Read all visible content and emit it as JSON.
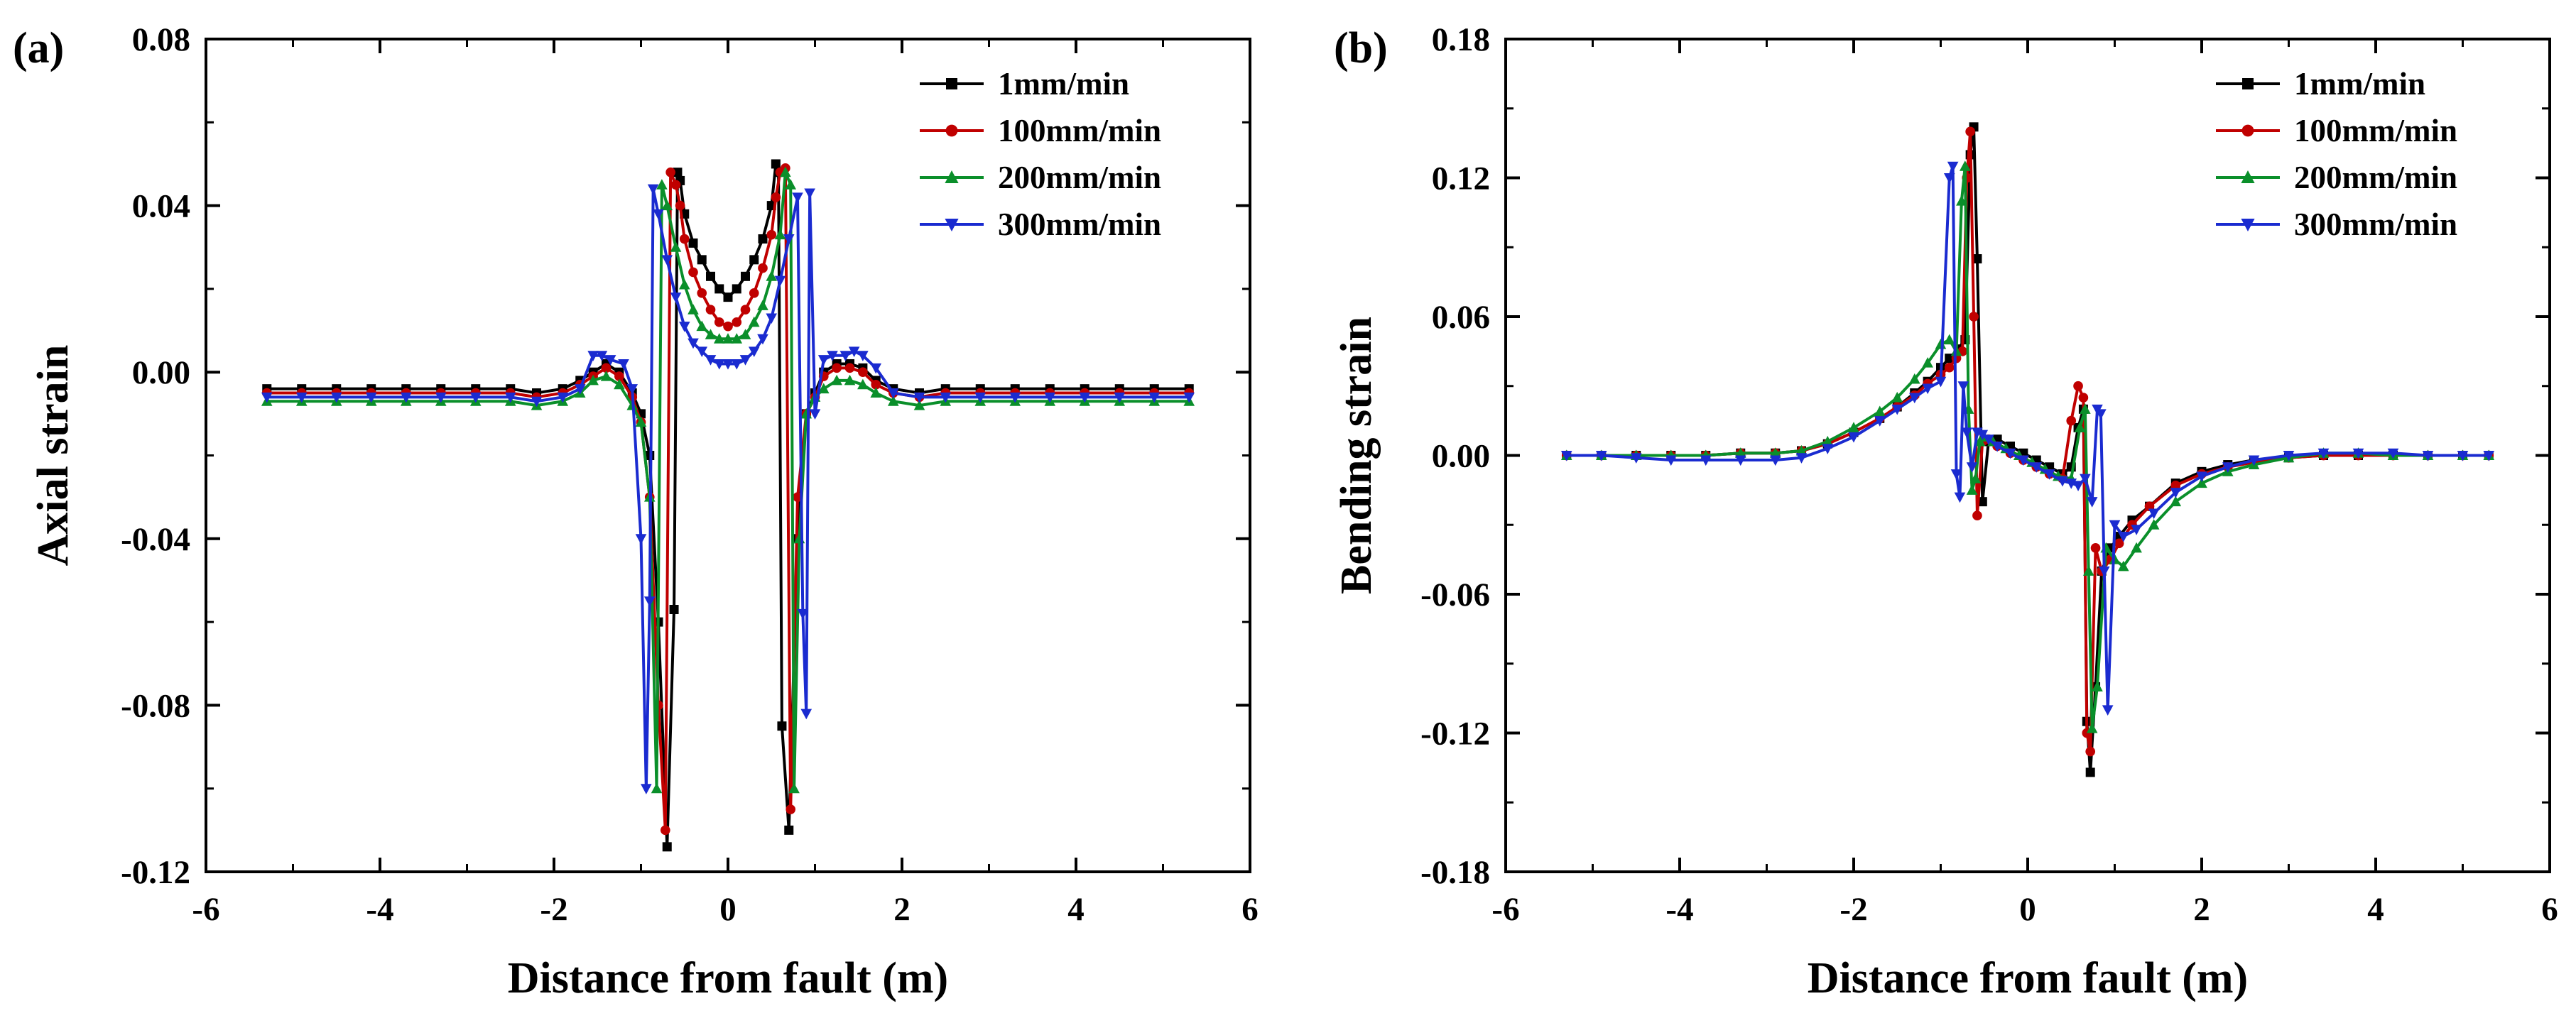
{
  "chart_data": [
    {
      "type": "line",
      "panel_label": "(a)",
      "xlabel": "Distance from fault (m)",
      "ylabel": "Axial strain",
      "xlim": [
        -6,
        6
      ],
      "ylim": [
        -0.12,
        0.08
      ],
      "xticks": [
        -6,
        -4,
        -2,
        0,
        2,
        4,
        6
      ],
      "xtick_labels": [
        "-6",
        "-4",
        "-2",
        "0",
        "2",
        "4",
        "6"
      ],
      "yticks": [
        -0.12,
        -0.08,
        -0.04,
        0.0,
        0.04,
        0.08
      ],
      "ytick_labels": [
        "-0.12",
        "-0.08",
        "-0.04",
        "0.00",
        "0.04",
        "0.08"
      ],
      "legend": "top-right",
      "series": [
        {
          "name": "1mm/min",
          "color": "#000000",
          "marker": "square",
          "x": [
            -5.3,
            -4.9,
            -4.5,
            -4.1,
            -3.7,
            -3.3,
            -2.9,
            -2.5,
            -2.2,
            -1.9,
            -1.7,
            -1.55,
            -1.4,
            -1.25,
            -1.1,
            -1.0,
            -0.9,
            -0.8,
            -0.7,
            -0.62,
            -0.58,
            -0.55,
            -0.5,
            -0.4,
            -0.3,
            -0.2,
            -0.1,
            0.0,
            0.1,
            0.2,
            0.3,
            0.4,
            0.5,
            0.55,
            0.58,
            0.62,
            0.7,
            0.8,
            0.9,
            1.0,
            1.1,
            1.25,
            1.4,
            1.55,
            1.7,
            1.9,
            2.2,
            2.5,
            2.9,
            3.3,
            3.7,
            4.1,
            4.5,
            4.9,
            5.3
          ],
          "y": [
            -0.004,
            -0.004,
            -0.004,
            -0.004,
            -0.004,
            -0.004,
            -0.004,
            -0.004,
            -0.005,
            -0.004,
            -0.002,
            0.0,
            0.002,
            0.0,
            -0.005,
            -0.01,
            -0.02,
            -0.06,
            -0.114,
            -0.057,
            0.048,
            0.046,
            0.038,
            0.031,
            0.027,
            0.023,
            0.02,
            0.018,
            0.02,
            0.023,
            0.027,
            0.032,
            0.04,
            0.05,
            0.048,
            -0.085,
            -0.11,
            -0.04,
            -0.01,
            -0.005,
            0.0,
            0.002,
            0.002,
            0.001,
            -0.002,
            -0.004,
            -0.005,
            -0.004,
            -0.004,
            -0.004,
            -0.004,
            -0.004,
            -0.004,
            -0.004,
            -0.004
          ]
        },
        {
          "name": "100mm/min",
          "color": "#c00000",
          "marker": "circle",
          "x": [
            -5.3,
            -4.9,
            -4.5,
            -4.1,
            -3.7,
            -3.3,
            -2.9,
            -2.5,
            -2.2,
            -1.9,
            -1.7,
            -1.55,
            -1.4,
            -1.25,
            -1.1,
            -1.0,
            -0.9,
            -0.8,
            -0.72,
            -0.66,
            -0.6,
            -0.55,
            -0.5,
            -0.4,
            -0.3,
            -0.2,
            -0.1,
            0.0,
            0.1,
            0.2,
            0.3,
            0.4,
            0.5,
            0.55,
            0.6,
            0.66,
            0.72,
            0.8,
            0.9,
            1.0,
            1.1,
            1.25,
            1.4,
            1.55,
            1.7,
            1.9,
            2.2,
            2.5,
            2.9,
            3.3,
            3.7,
            4.1,
            4.5,
            4.9,
            5.3
          ],
          "y": [
            -0.005,
            -0.005,
            -0.005,
            -0.005,
            -0.005,
            -0.005,
            -0.005,
            -0.005,
            -0.006,
            -0.005,
            -0.003,
            -0.001,
            0.001,
            -0.001,
            -0.006,
            -0.012,
            -0.03,
            -0.08,
            -0.11,
            0.048,
            0.045,
            0.04,
            0.032,
            0.024,
            0.019,
            0.015,
            0.012,
            0.011,
            0.012,
            0.015,
            0.019,
            0.025,
            0.033,
            0.042,
            0.048,
            0.049,
            -0.105,
            -0.03,
            -0.01,
            -0.006,
            -0.001,
            0.001,
            0.001,
            0.0,
            -0.003,
            -0.005,
            -0.006,
            -0.005,
            -0.005,
            -0.005,
            -0.005,
            -0.005,
            -0.005,
            -0.005,
            -0.005
          ]
        },
        {
          "name": "200mm/min",
          "color": "#0a8f2a",
          "marker": "triangle-up",
          "x": [
            -5.3,
            -4.9,
            -4.5,
            -4.1,
            -3.7,
            -3.3,
            -2.9,
            -2.5,
            -2.2,
            -1.9,
            -1.7,
            -1.55,
            -1.4,
            -1.25,
            -1.1,
            -1.0,
            -0.9,
            -0.82,
            -0.76,
            -0.7,
            -0.6,
            -0.5,
            -0.4,
            -0.3,
            -0.2,
            -0.1,
            0.0,
            0.1,
            0.2,
            0.3,
            0.4,
            0.5,
            0.6,
            0.66,
            0.72,
            0.76,
            0.82,
            0.9,
            1.0,
            1.1,
            1.25,
            1.4,
            1.55,
            1.7,
            1.9,
            2.2,
            2.5,
            2.9,
            3.3,
            3.7,
            4.1,
            4.5,
            4.9,
            5.3
          ],
          "y": [
            -0.007,
            -0.007,
            -0.007,
            -0.007,
            -0.007,
            -0.007,
            -0.007,
            -0.007,
            -0.008,
            -0.007,
            -0.005,
            -0.002,
            -0.001,
            -0.003,
            -0.008,
            -0.012,
            -0.03,
            -0.1,
            0.045,
            0.04,
            0.03,
            0.021,
            0.015,
            0.011,
            0.009,
            0.008,
            0.008,
            0.008,
            0.009,
            0.012,
            0.016,
            0.023,
            0.033,
            0.048,
            0.045,
            -0.1,
            -0.04,
            -0.01,
            -0.006,
            -0.004,
            -0.002,
            -0.002,
            -0.003,
            -0.005,
            -0.007,
            -0.008,
            -0.007,
            -0.007,
            -0.007,
            -0.007,
            -0.007,
            -0.007,
            -0.007,
            -0.007
          ]
        },
        {
          "name": "300mm/min",
          "color": "#1a2bd0",
          "marker": "triangle-down",
          "x": [
            -5.3,
            -4.9,
            -4.5,
            -4.1,
            -3.7,
            -3.3,
            -2.9,
            -2.5,
            -2.2,
            -1.9,
            -1.7,
            -1.55,
            -1.45,
            -1.35,
            -1.2,
            -1.1,
            -1.0,
            -0.94,
            -0.9,
            -0.86,
            -0.8,
            -0.7,
            -0.6,
            -0.5,
            -0.4,
            -0.3,
            -0.2,
            -0.1,
            0.0,
            0.1,
            0.2,
            0.3,
            0.4,
            0.5,
            0.6,
            0.7,
            0.8,
            0.86,
            0.9,
            0.94,
            1.0,
            1.1,
            1.2,
            1.35,
            1.45,
            1.55,
            1.7,
            1.9,
            2.2,
            2.5,
            2.9,
            3.3,
            3.7,
            4.1,
            4.5,
            4.9,
            5.3
          ],
          "y": [
            -0.006,
            -0.006,
            -0.006,
            -0.006,
            -0.006,
            -0.006,
            -0.006,
            -0.006,
            -0.007,
            -0.006,
            -0.004,
            0.004,
            0.004,
            0.003,
            0.002,
            -0.004,
            -0.04,
            -0.1,
            -0.055,
            0.044,
            0.038,
            0.027,
            0.018,
            0.011,
            0.007,
            0.005,
            0.003,
            0.002,
            0.002,
            0.002,
            0.003,
            0.005,
            0.008,
            0.013,
            0.022,
            0.032,
            0.042,
            -0.058,
            -0.082,
            0.043,
            -0.01,
            0.003,
            0.004,
            0.004,
            0.005,
            0.004,
            0.001,
            -0.005,
            -0.006,
            -0.006,
            -0.006,
            -0.006,
            -0.006,
            -0.006,
            -0.006,
            -0.006,
            -0.006
          ]
        }
      ]
    },
    {
      "type": "line",
      "panel_label": "(b)",
      "xlabel": "Distance from fault (m)",
      "ylabel": "Bending strain",
      "xlim": [
        -6,
        6
      ],
      "ylim": [
        -0.18,
        0.18
      ],
      "xticks": [
        -6,
        -4,
        -2,
        0,
        2,
        4,
        6
      ],
      "xtick_labels": [
        "-6",
        "-4",
        "-2",
        "0",
        "2",
        "4",
        "6"
      ],
      "yticks": [
        -0.18,
        -0.12,
        -0.06,
        0.0,
        0.06,
        0.12,
        0.18
      ],
      "ytick_labels": [
        "-0.18",
        "-0.12",
        "-0.06",
        "0.00",
        "0.06",
        "0.12",
        "0.18"
      ],
      "legend": "top-right",
      "series": [
        {
          "name": "1mm/min",
          "color": "#000000",
          "marker": "square",
          "x": [
            -5.3,
            -4.9,
            -4.5,
            -4.1,
            -3.7,
            -3.3,
            -2.9,
            -2.6,
            -2.3,
            -2.0,
            -1.7,
            -1.5,
            -1.3,
            -1.15,
            -1.0,
            -0.9,
            -0.8,
            -0.72,
            -0.66,
            -0.62,
            -0.58,
            -0.52,
            -0.45,
            -0.35,
            -0.2,
            -0.05,
            0.1,
            0.25,
            0.4,
            0.5,
            0.58,
            0.64,
            0.68,
            0.72,
            0.78,
            0.85,
            0.95,
            1.05,
            1.2,
            1.4,
            1.7,
            2.0,
            2.3,
            2.6,
            3.0,
            3.4,
            3.8,
            4.2,
            4.6,
            5.0,
            5.3
          ],
          "y": [
            0.0,
            0.0,
            0.0,
            0.0,
            0.0,
            0.001,
            0.001,
            0.002,
            0.005,
            0.01,
            0.016,
            0.021,
            0.027,
            0.032,
            0.038,
            0.042,
            0.046,
            0.05,
            0.13,
            0.142,
            0.085,
            -0.02,
            0.006,
            0.007,
            0.004,
            0.001,
            -0.002,
            -0.005,
            -0.008,
            -0.005,
            0.012,
            0.02,
            -0.115,
            -0.137,
            -0.1,
            -0.05,
            -0.04,
            -0.035,
            -0.028,
            -0.022,
            -0.012,
            -0.007,
            -0.004,
            -0.002,
            -0.001,
            0.0,
            0.0,
            0.0,
            0.0,
            0.0,
            0.0
          ]
        },
        {
          "name": "100mm/min",
          "color": "#c00000",
          "marker": "circle",
          "x": [
            -5.3,
            -4.9,
            -4.5,
            -4.1,
            -3.7,
            -3.3,
            -2.9,
            -2.6,
            -2.3,
            -2.0,
            -1.7,
            -1.5,
            -1.3,
            -1.15,
            -1.0,
            -0.9,
            -0.82,
            -0.75,
            -0.7,
            -0.66,
            -0.62,
            -0.58,
            -0.52,
            -0.45,
            -0.35,
            -0.2,
            -0.05,
            0.1,
            0.25,
            0.4,
            0.5,
            0.58,
            0.64,
            0.68,
            0.72,
            0.78,
            0.85,
            0.95,
            1.05,
            1.2,
            1.4,
            1.7,
            2.0,
            2.3,
            2.6,
            3.0,
            3.4,
            3.8,
            4.2,
            4.6,
            5.0,
            5.3
          ],
          "y": [
            0.0,
            0.0,
            0.0,
            0.0,
            0.0,
            0.001,
            0.001,
            0.002,
            0.005,
            0.01,
            0.016,
            0.021,
            0.026,
            0.031,
            0.035,
            0.038,
            0.042,
            0.045,
            0.12,
            0.14,
            0.06,
            -0.026,
            0.006,
            0.007,
            0.004,
            0.001,
            -0.002,
            -0.005,
            -0.008,
            -0.01,
            0.015,
            0.03,
            0.025,
            -0.12,
            -0.128,
            -0.04,
            -0.05,
            -0.045,
            -0.038,
            -0.03,
            -0.022,
            -0.013,
            -0.008,
            -0.005,
            -0.003,
            -0.001,
            0.0,
            0.0,
            0.0,
            0.0,
            0.0,
            0.0
          ]
        },
        {
          "name": "200mm/min",
          "color": "#0a8f2a",
          "marker": "triangle-up",
          "x": [
            -5.3,
            -4.9,
            -4.5,
            -4.1,
            -3.7,
            -3.3,
            -2.9,
            -2.6,
            -2.3,
            -2.0,
            -1.7,
            -1.5,
            -1.3,
            -1.15,
            -1.0,
            -0.9,
            -0.82,
            -0.76,
            -0.72,
            -0.68,
            -0.64,
            -0.6,
            -0.55,
            -0.5,
            -0.4,
            -0.25,
            -0.1,
            0.05,
            0.2,
            0.35,
            0.5,
            0.6,
            0.66,
            0.7,
            0.74,
            0.8,
            0.9,
            1.0,
            1.1,
            1.25,
            1.45,
            1.7,
            2.0,
            2.3,
            2.6,
            3.0,
            3.4,
            3.8,
            4.2,
            4.6,
            5.0,
            5.3
          ],
          "y": [
            0.0,
            0.0,
            0.0,
            0.0,
            0.0,
            0.001,
            0.001,
            0.002,
            0.006,
            0.012,
            0.019,
            0.025,
            0.033,
            0.04,
            0.048,
            0.05,
            0.045,
            0.11,
            0.125,
            0.02,
            -0.015,
            -0.01,
            0.006,
            0.008,
            0.006,
            0.003,
            0.0,
            -0.003,
            -0.006,
            -0.009,
            -0.01,
            0.012,
            0.02,
            -0.05,
            -0.118,
            -0.1,
            -0.04,
            -0.045,
            -0.048,
            -0.04,
            -0.03,
            -0.02,
            -0.012,
            -0.007,
            -0.004,
            -0.001,
            0.001,
            0.001,
            0.0,
            0.0,
            0.0,
            0.0
          ]
        },
        {
          "name": "300mm/min",
          "color": "#1a2bd0",
          "marker": "triangle-down",
          "x": [
            -5.3,
            -4.9,
            -4.5,
            -4.1,
            -3.7,
            -3.3,
            -2.9,
            -2.6,
            -2.3,
            -2.0,
            -1.7,
            -1.5,
            -1.3,
            -1.15,
            -1.0,
            -0.9,
            -0.86,
            -0.82,
            -0.78,
            -0.74,
            -0.7,
            -0.64,
            -0.58,
            -0.52,
            -0.45,
            -0.35,
            -0.2,
            -0.05,
            0.1,
            0.25,
            0.4,
            0.5,
            0.58,
            0.66,
            0.74,
            0.8,
            0.84,
            0.88,
            0.92,
            1.0,
            1.1,
            1.25,
            1.45,
            1.7,
            2.0,
            2.3,
            2.6,
            3.0,
            3.4,
            3.8,
            4.2,
            4.6,
            5.0,
            5.3
          ],
          "y": [
            0.0,
            0.0,
            -0.001,
            -0.002,
            -0.002,
            -0.002,
            -0.002,
            -0.001,
            0.003,
            0.008,
            0.015,
            0.02,
            0.025,
            0.029,
            0.032,
            0.12,
            0.125,
            -0.008,
            -0.018,
            0.03,
            0.01,
            -0.005,
            0.01,
            0.009,
            0.007,
            0.004,
            0.001,
            -0.002,
            -0.005,
            -0.008,
            -0.011,
            -0.012,
            -0.013,
            -0.01,
            -0.02,
            0.02,
            0.018,
            -0.05,
            -0.11,
            -0.03,
            -0.035,
            -0.032,
            -0.025,
            -0.016,
            -0.009,
            -0.005,
            -0.002,
            0.0,
            0.001,
            0.001,
            0.001,
            0.0,
            0.0,
            0.0
          ]
        }
      ]
    }
  ]
}
